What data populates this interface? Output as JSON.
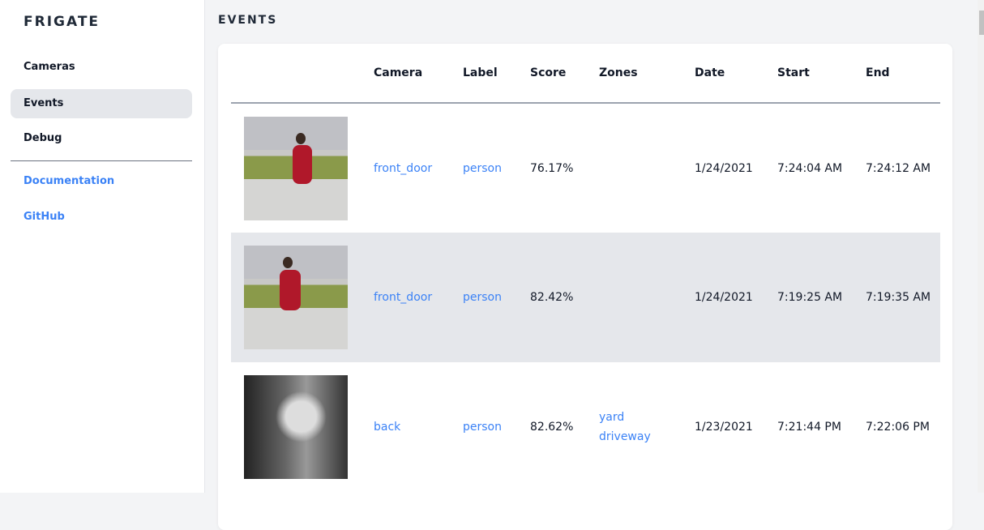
{
  "sidebar": {
    "brand": "FRIGATE",
    "items": [
      {
        "label": "Cameras"
      },
      {
        "label": "Events",
        "active": true
      },
      {
        "label": "Debug"
      }
    ],
    "links": [
      {
        "label": "Documentation"
      },
      {
        "label": "GitHub"
      }
    ]
  },
  "page": {
    "title": "EVENTS"
  },
  "table": {
    "headers": [
      "",
      "Camera",
      "Label",
      "Score",
      "Zones",
      "Date",
      "Start",
      "End"
    ],
    "rows": [
      {
        "camera": "front_door",
        "label": "person",
        "score": "76.17%",
        "zones": [
          "",
          ""
        ],
        "date": "1/24/2021",
        "start": "7:24:04 AM",
        "end": "7:24:12 AM"
      },
      {
        "camera": "front_door",
        "label": "person",
        "score": "82.42%",
        "zones": [
          "",
          ""
        ],
        "date": "1/24/2021",
        "start": "7:19:25 AM",
        "end": "7:19:35 AM"
      },
      {
        "camera": "back",
        "label": "person",
        "score": "82.62%",
        "zones": [
          "yard",
          "driveway"
        ],
        "date": "1/23/2021",
        "start": "7:21:44 PM",
        "end": "7:22:06 PM"
      }
    ]
  },
  "colors": {
    "accent": "#3b82f6",
    "active_bg": "#e5e7eb",
    "background": "#f3f4f6"
  }
}
